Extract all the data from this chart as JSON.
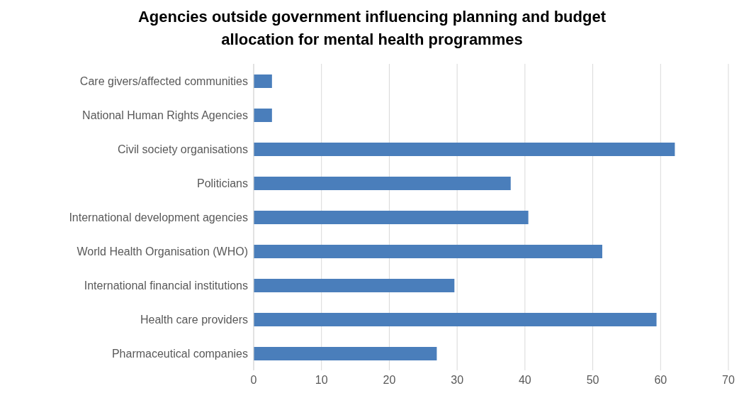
{
  "chart_data": {
    "type": "bar",
    "orientation": "horizontal",
    "title": "Agencies outside government influencing planning and budget allocation for mental health programmes",
    "categories": [
      "Care givers/affected communities",
      "National Human Rights Agencies",
      "Civil society organisations",
      "Politicians",
      "International development agencies",
      "World Health Organisation (WHO)",
      "International financial institutions",
      "Health care providers",
      "Pharmaceutical companies"
    ],
    "values": [
      2.7,
      2.7,
      62.1,
      37.9,
      40.5,
      51.4,
      29.6,
      59.4,
      27.0
    ],
    "color": "#4a7ebb",
    "xlim": [
      0,
      70
    ],
    "xticks": [
      0,
      10,
      20,
      30,
      40,
      50,
      60,
      70
    ],
    "grid": "x"
  }
}
